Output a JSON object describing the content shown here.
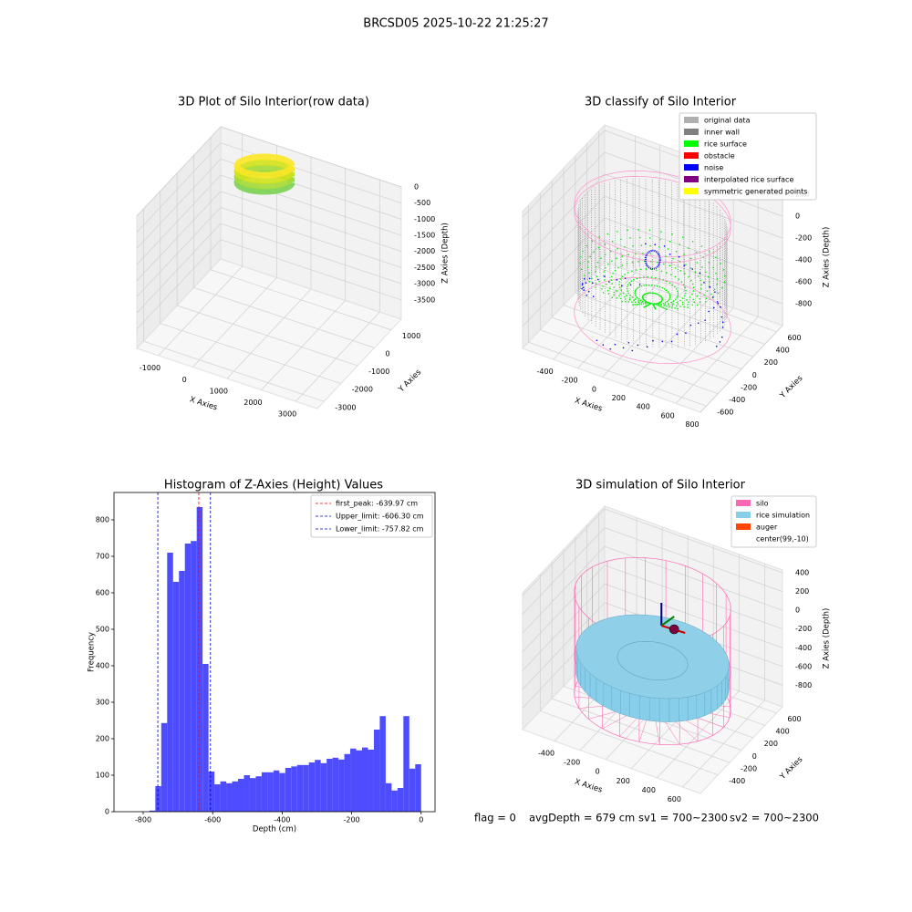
{
  "suptitle": "BRCSD05 2025-10-22 21:25:27",
  "chart_data": [
    {
      "type": "scatter3d",
      "title": "3D Plot of Silo Interior(row data)",
      "xlabel": "X Axies",
      "ylabel": "Y Axies",
      "zlabel": "Z Axies (Depth)",
      "xlim": [
        -1630,
        3630
      ],
      "ylim": [
        -3400,
        1600
      ],
      "zlim": [
        -4100,
        0
      ],
      "xticks": [
        -1000,
        0,
        1000,
        2000,
        3000
      ],
      "yticks": [
        -3000,
        -2000,
        -1000,
        0,
        1000
      ],
      "zticks": [
        0,
        -500,
        -1000,
        -1500,
        -2000,
        -2500,
        -3000,
        -3500
      ]
    },
    {
      "type": "scatter3d",
      "title": "3D classify of Silo Interior",
      "xlabel": "X Axies",
      "ylabel": "Y Axies",
      "zlabel": "Z Axies (Depth)",
      "xlim": [
        -650,
        800
      ],
      "ylim": [
        -700,
        700
      ],
      "zlim": [
        -1000,
        250
      ],
      "xticks": [
        -400,
        -200,
        0,
        200,
        400,
        600,
        800
      ],
      "yticks": [
        -600,
        -400,
        -200,
        0,
        200,
        400,
        600
      ],
      "zticks": [
        200,
        0,
        -200,
        -400,
        -600,
        -800
      ],
      "legend": "upper right",
      "legend_items": [
        {
          "name": "original data",
          "color": "#b0b0b0"
        },
        {
          "name": "inner wall",
          "color": "#808080"
        },
        {
          "name": "rice surface",
          "color": "#00ff00"
        },
        {
          "name": "obstacle",
          "color": "#ff0000"
        },
        {
          "name": "noise",
          "color": "#0000ff"
        },
        {
          "name": "interpolated rice surface",
          "color": "#800080"
        },
        {
          "name": "symmetric generated points",
          "color": "#ffff00"
        }
      ]
    },
    {
      "type": "histogram",
      "title": "Histogram of Z-Axies (Height) Values",
      "xlabel": "Depth (cm)",
      "ylabel": "Frequency",
      "color": "#4d4dff",
      "bins": [
        -782,
        -765,
        -748,
        -731,
        -714,
        -697,
        -680,
        -663,
        -646,
        -629,
        -612,
        -595,
        -578,
        -561,
        -544,
        -527,
        -510,
        -493,
        -476,
        -459,
        -442,
        -425,
        -408,
        -391,
        -374,
        -357,
        -340,
        -323,
        -306,
        -289,
        -272,
        -255,
        -238,
        -221,
        -204,
        -187,
        -170,
        -153,
        -136,
        -119,
        -102,
        -85,
        -68,
        -51,
        -34,
        -17,
        0
      ],
      "values": [
        3,
        70,
        243,
        710,
        630,
        660,
        735,
        742,
        835,
        405,
        110,
        75,
        83,
        78,
        83,
        90,
        100,
        92,
        97,
        108,
        108,
        113,
        106,
        120,
        124,
        128,
        128,
        135,
        142,
        133,
        145,
        148,
        143,
        158,
        173,
        168,
        176,
        170,
        225,
        262,
        78,
        58,
        65,
        262,
        118,
        130
      ],
      "xlim": [
        -884,
        40
      ],
      "ylim": [
        0,
        875
      ],
      "xticks": [
        -800,
        -600,
        -400,
        -200,
        0
      ],
      "yticks": [
        0,
        100,
        200,
        300,
        400,
        500,
        600,
        700,
        800
      ],
      "legend": "upper right",
      "vlines": [
        {
          "value": -639.97,
          "label": "first_peak: -639.97 cm",
          "color": "#ff0000"
        },
        {
          "value": -606.3,
          "label": "Upper_limit: -606.30 cm",
          "color": "#0000cc"
        },
        {
          "value": -757.82,
          "label": "Lower_limit: -757.82 cm",
          "color": "#0000cc"
        }
      ]
    },
    {
      "type": "scatter3d",
      "title": "3D simulation of Silo Interior",
      "xlabel": "X Axies",
      "ylabel": "Y Axies",
      "zlabel": "Z Axies (Depth)",
      "xlim": [
        -650,
        740
      ],
      "ylim": [
        -700,
        700
      ],
      "zlim": [
        -1030,
        430
      ],
      "xticks": [
        -400,
        -200,
        0,
        200,
        400,
        600
      ],
      "yticks": [
        -400,
        -200,
        0,
        200,
        400,
        600
      ],
      "zticks": [
        400,
        200,
        0,
        -200,
        -400,
        -600,
        -800
      ],
      "legend": "upper right",
      "legend_items": [
        {
          "name": "silo",
          "color": "#ff69b4"
        },
        {
          "name": "rice simulation",
          "color": "#87ceeb"
        },
        {
          "name": "auger",
          "color": "#ff4500"
        },
        {
          "name": "center(99,-10)",
          "color": "#ffffff"
        }
      ]
    }
  ],
  "footer": [
    "flag = 0",
    "avgDepth = 679 cm",
    "sv1 = 700~2300",
    "sv2 = 700~2300"
  ]
}
